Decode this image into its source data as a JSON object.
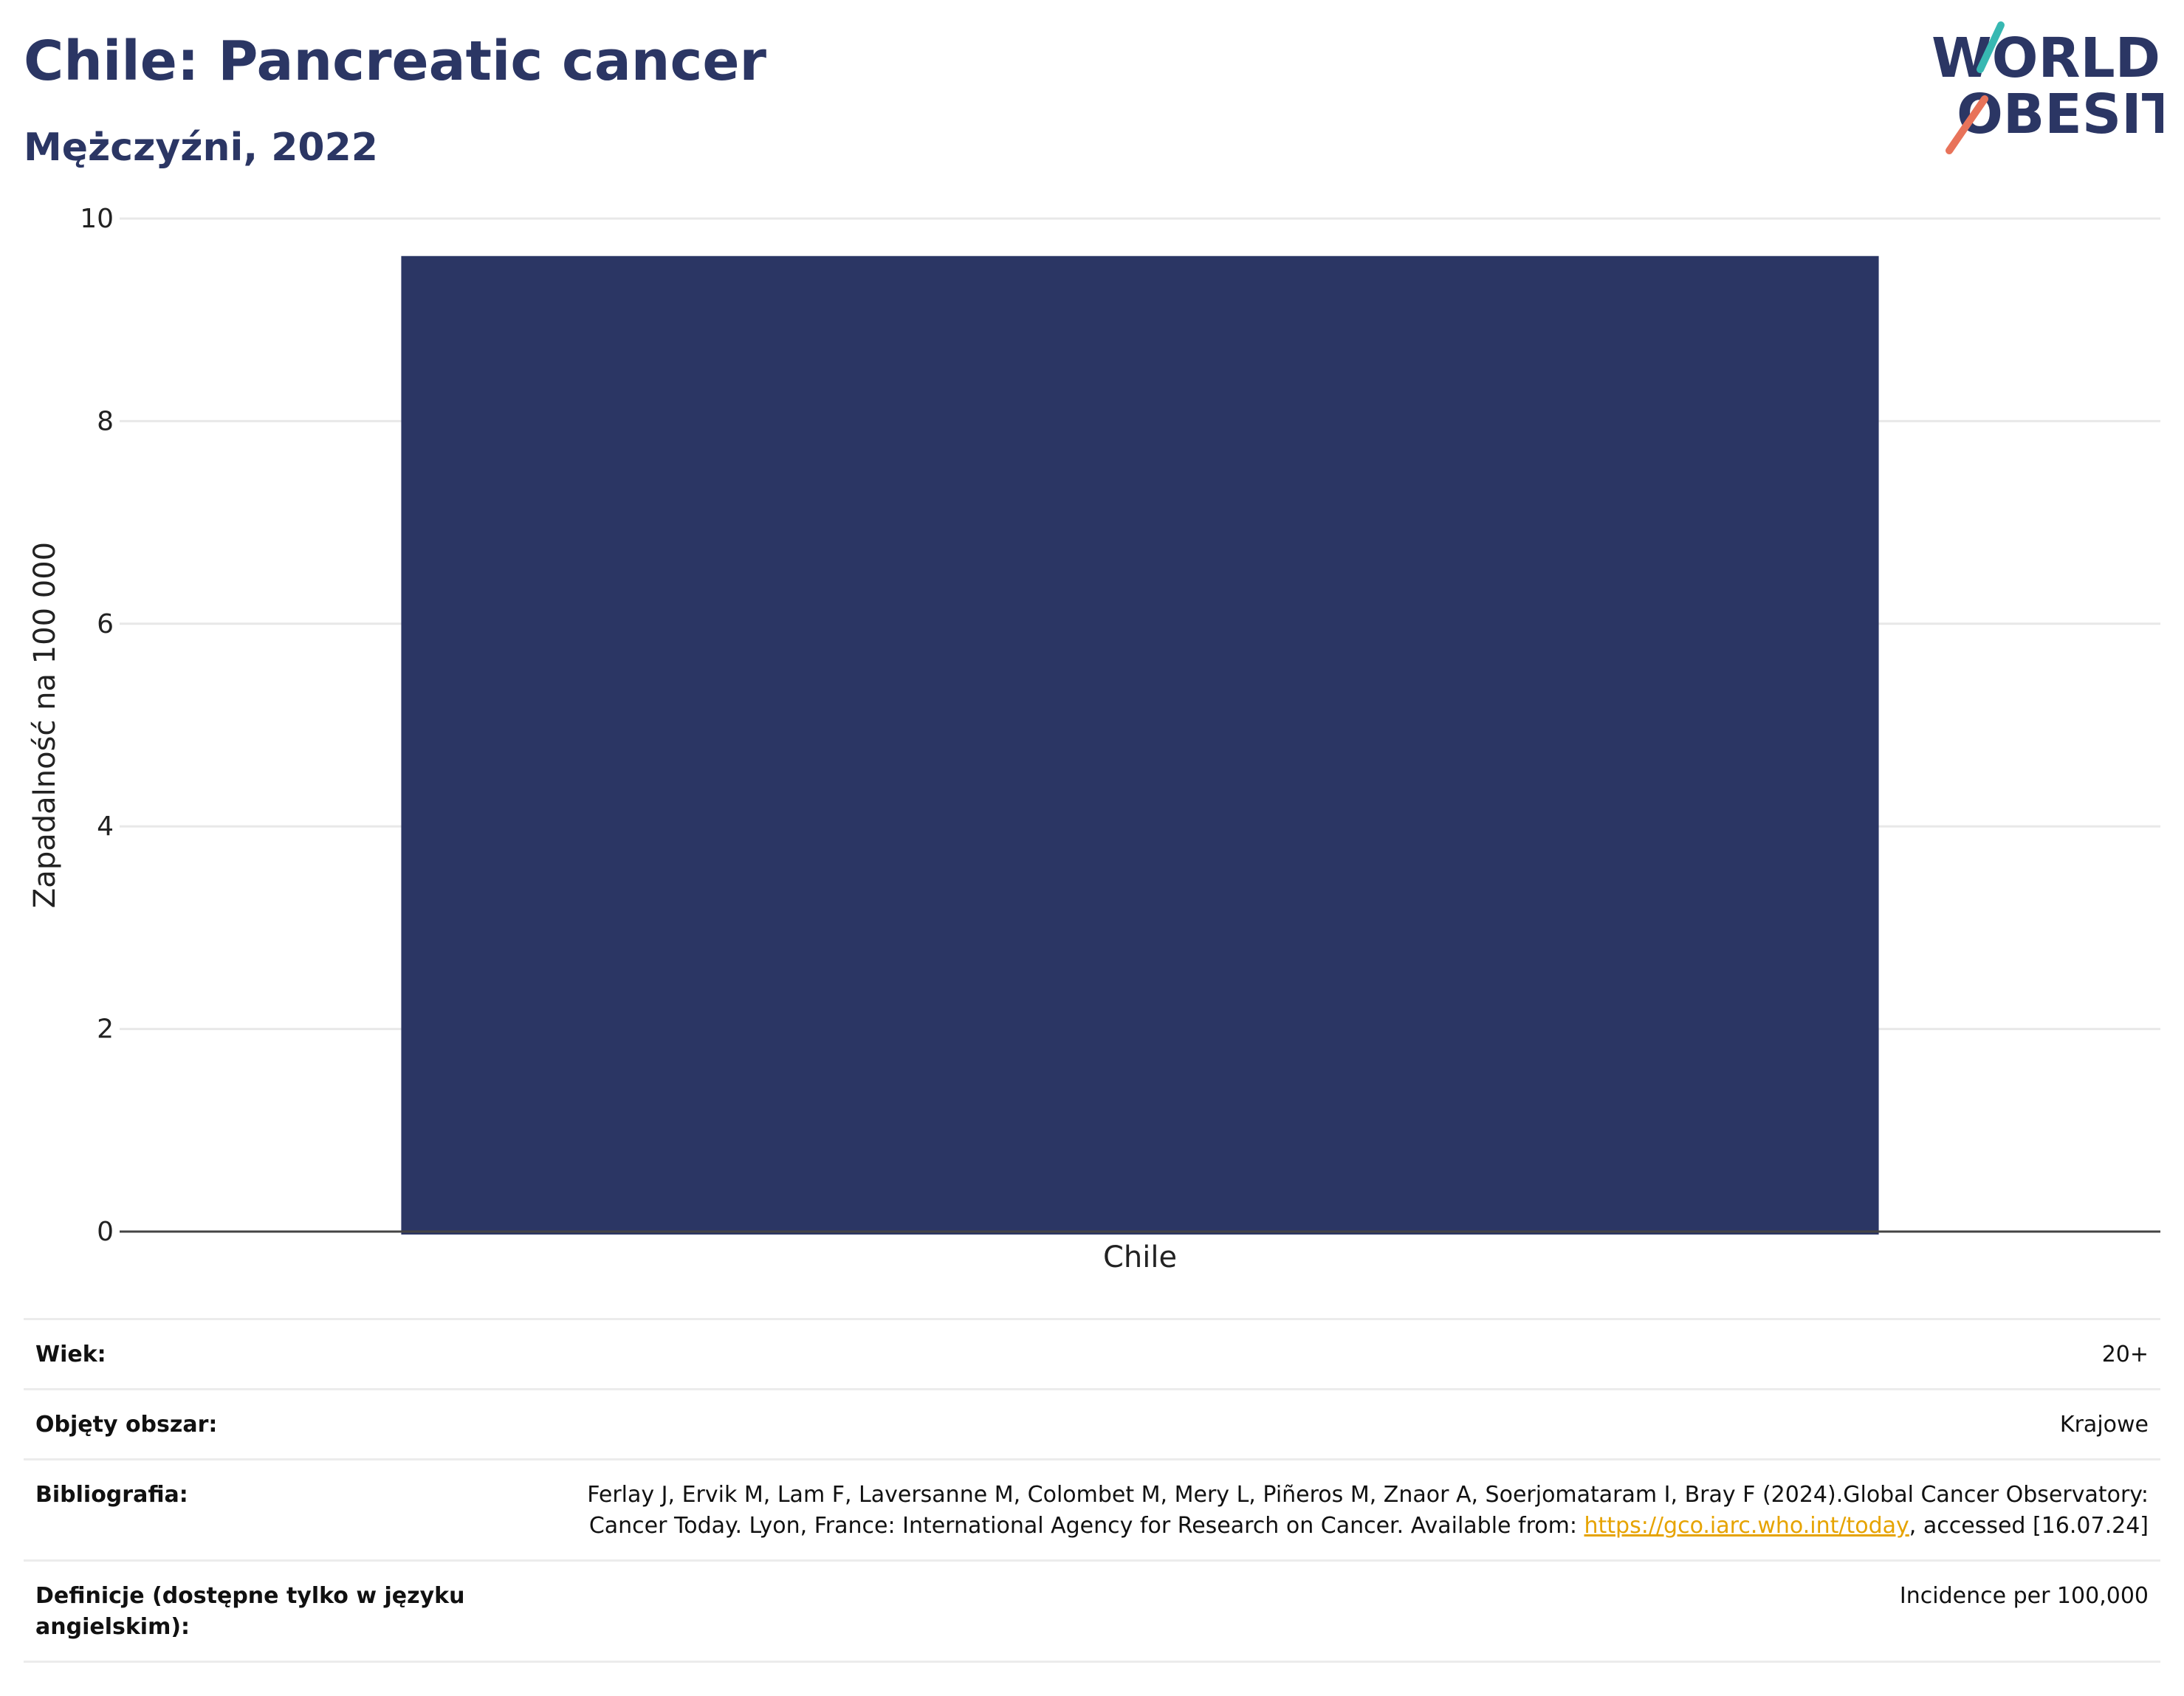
{
  "header": {
    "title": "Chile: Pancreatic cancer",
    "subtitle": "Mężczyźni, 2022"
  },
  "logo": {
    "line1": "WORLD",
    "line2": "OBESITY"
  },
  "colors": {
    "bar": "#2b3664",
    "brand": "#2b3664",
    "accent_teal": "#37b8b2",
    "accent_coral": "#e8735a",
    "link": "#e6a300"
  },
  "chart_data": {
    "type": "bar",
    "categories": [
      "Chile"
    ],
    "values": [
      9.63
    ],
    "title": "Chile: Pancreatic cancer",
    "subtitle": "Mężczyźni, 2022",
    "xlabel": "",
    "ylabel": "Zapadalność na 100 000",
    "ylim": [
      0,
      10
    ],
    "yticks": [
      0,
      2,
      4,
      6,
      8,
      10
    ],
    "grid": true
  },
  "meta": {
    "rows": [
      {
        "key": "Wiek:",
        "value": "20+"
      },
      {
        "key": "Objęty obszar:",
        "value": "Krajowe"
      },
      {
        "key": "Bibliografia:",
        "value_pre": "Ferlay J, Ervik M, Lam F, Laversanne M, Colombet M, Mery L, Piñeros M, Znaor A, Soerjomataram I, Bray F (2024).Global Cancer Observatory: Cancer Today. Lyon, France: International Agency for Research on Cancer. Available from: ",
        "link": "https://gco.iarc.who.int/today",
        "value_post": ", accessed [16.07.24]"
      },
      {
        "key": "Definicje (dostępne tylko w języku angielskim):",
        "value": "Incidence per 100,000"
      }
    ]
  }
}
